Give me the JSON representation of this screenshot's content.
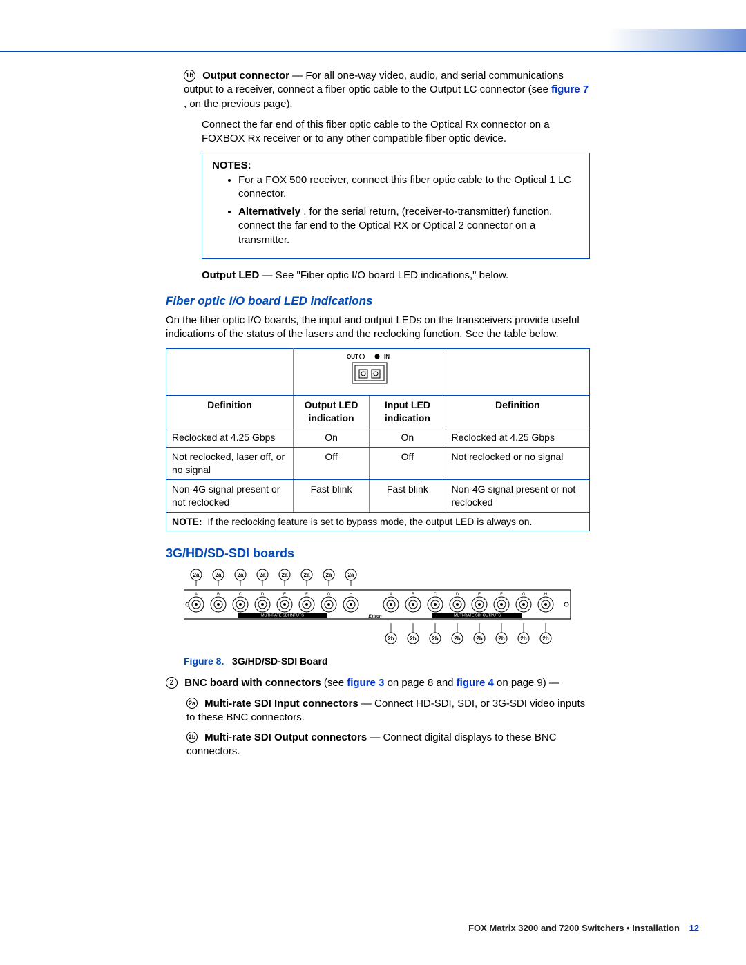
{
  "colors": {
    "accent": "#004bbb",
    "link": "#0033cc",
    "border_grey": "#888888",
    "bg": "#ffffff"
  },
  "callouts": {
    "b1b": "1b",
    "b2": "2",
    "b2a": "2a",
    "b2b": "2b"
  },
  "sec_output_connector": {
    "title": "Output connector",
    "body1": " — For all one-way video, audio, and serial communications output to a receiver, connect a fiber optic cable to the Output LC connector (see ",
    "fig7": "figure 7",
    "body1_tail": ", on the previous page).",
    "body2": "Connect the far end of this fiber optic cable to the Optical Rx connector on a FOXBOX Rx receiver or to any other compatible fiber optic device."
  },
  "notesbox": {
    "heading": "NOTES:",
    "li1": "For a FOX 500 receiver, connect this fiber optic cable to the Optical 1 LC connector.",
    "li2_lead": "Alternatively",
    "li2_rest": ", for the serial return, (receiver-to-transmitter) function, connect the far end to the Optical RX or Optical 2 connector on a transmitter."
  },
  "output_led_line": {
    "label": "Output LED",
    "rest": " — See \"Fiber optic I/O board LED indications,\" below."
  },
  "h_fiber": "Fiber optic I/O board LED indications",
  "fiber_intro": "On the fiber optic I/O boards, the input and output LEDs on the transceivers provide useful indications of the status of the lasers and the reclocking function. See the table below.",
  "led_table": {
    "outin": {
      "out": "OUT",
      "in": "IN"
    },
    "headers": {
      "def": "Definition",
      "out": "Output LED indication",
      "in": "Input LED indication"
    },
    "rows": [
      {
        "def_out": "Reclocked at 4.25 Gbps",
        "out": "On",
        "in": "On",
        "def_in": "Reclocked at 4.25 Gbps"
      },
      {
        "def_out": "Not reclocked, laser off, or no signal",
        "out": "Off",
        "in": "Off",
        "def_in": "Not reclocked or no signal"
      },
      {
        "def_out": "Non-4G signal present or not reclocked",
        "out": "Fast blink",
        "in": "Fast blink",
        "def_in": "Non-4G signal present or not reclocked"
      }
    ],
    "note_label": "NOTE:",
    "note_text": "If the reclocking feature is set to bypass mode, the output LED is always on."
  },
  "h_sdi": "3G/HD/SD-SDI boards",
  "sdi_board": {
    "top_labels": [
      "2a",
      "2a",
      "2a",
      "2a",
      "2a",
      "2a",
      "2a",
      "2a"
    ],
    "bot_labels": [
      "2b",
      "2b",
      "2b",
      "2b",
      "2b",
      "2b",
      "2b",
      "2b"
    ],
    "port_letters": [
      "A",
      "B",
      "C",
      "D",
      "E",
      "F",
      "G",
      "H"
    ],
    "input_panel_label": "MUTI-RATE SDI INPUTS",
    "output_panel_label": "MUTI-RATE SDI OUTPUTS",
    "brand": "Extron"
  },
  "fig8": {
    "num": "Figure 8.",
    "title": "3G/HD/SD-SDI Board"
  },
  "item2": {
    "title": "BNC board with connectors",
    "rest1": " (see ",
    "fig3": "figure 3",
    "mid": " on page 8 and ",
    "fig4": "figure 4",
    "rest2": " on page 9) —"
  },
  "item2a": {
    "title": "Multi-rate SDI Input connectors",
    "rest": " — Connect HD-SDI, SDI, or 3G-SDI video inputs to these BNC connectors."
  },
  "item2b": {
    "title": "Multi-rate SDI Output connectors",
    "rest": " — Connect digital displays to these BNC connectors."
  },
  "footer": {
    "text": "FOX Matrix 3200 and 7200 Switchers • Installation",
    "page": "12"
  }
}
